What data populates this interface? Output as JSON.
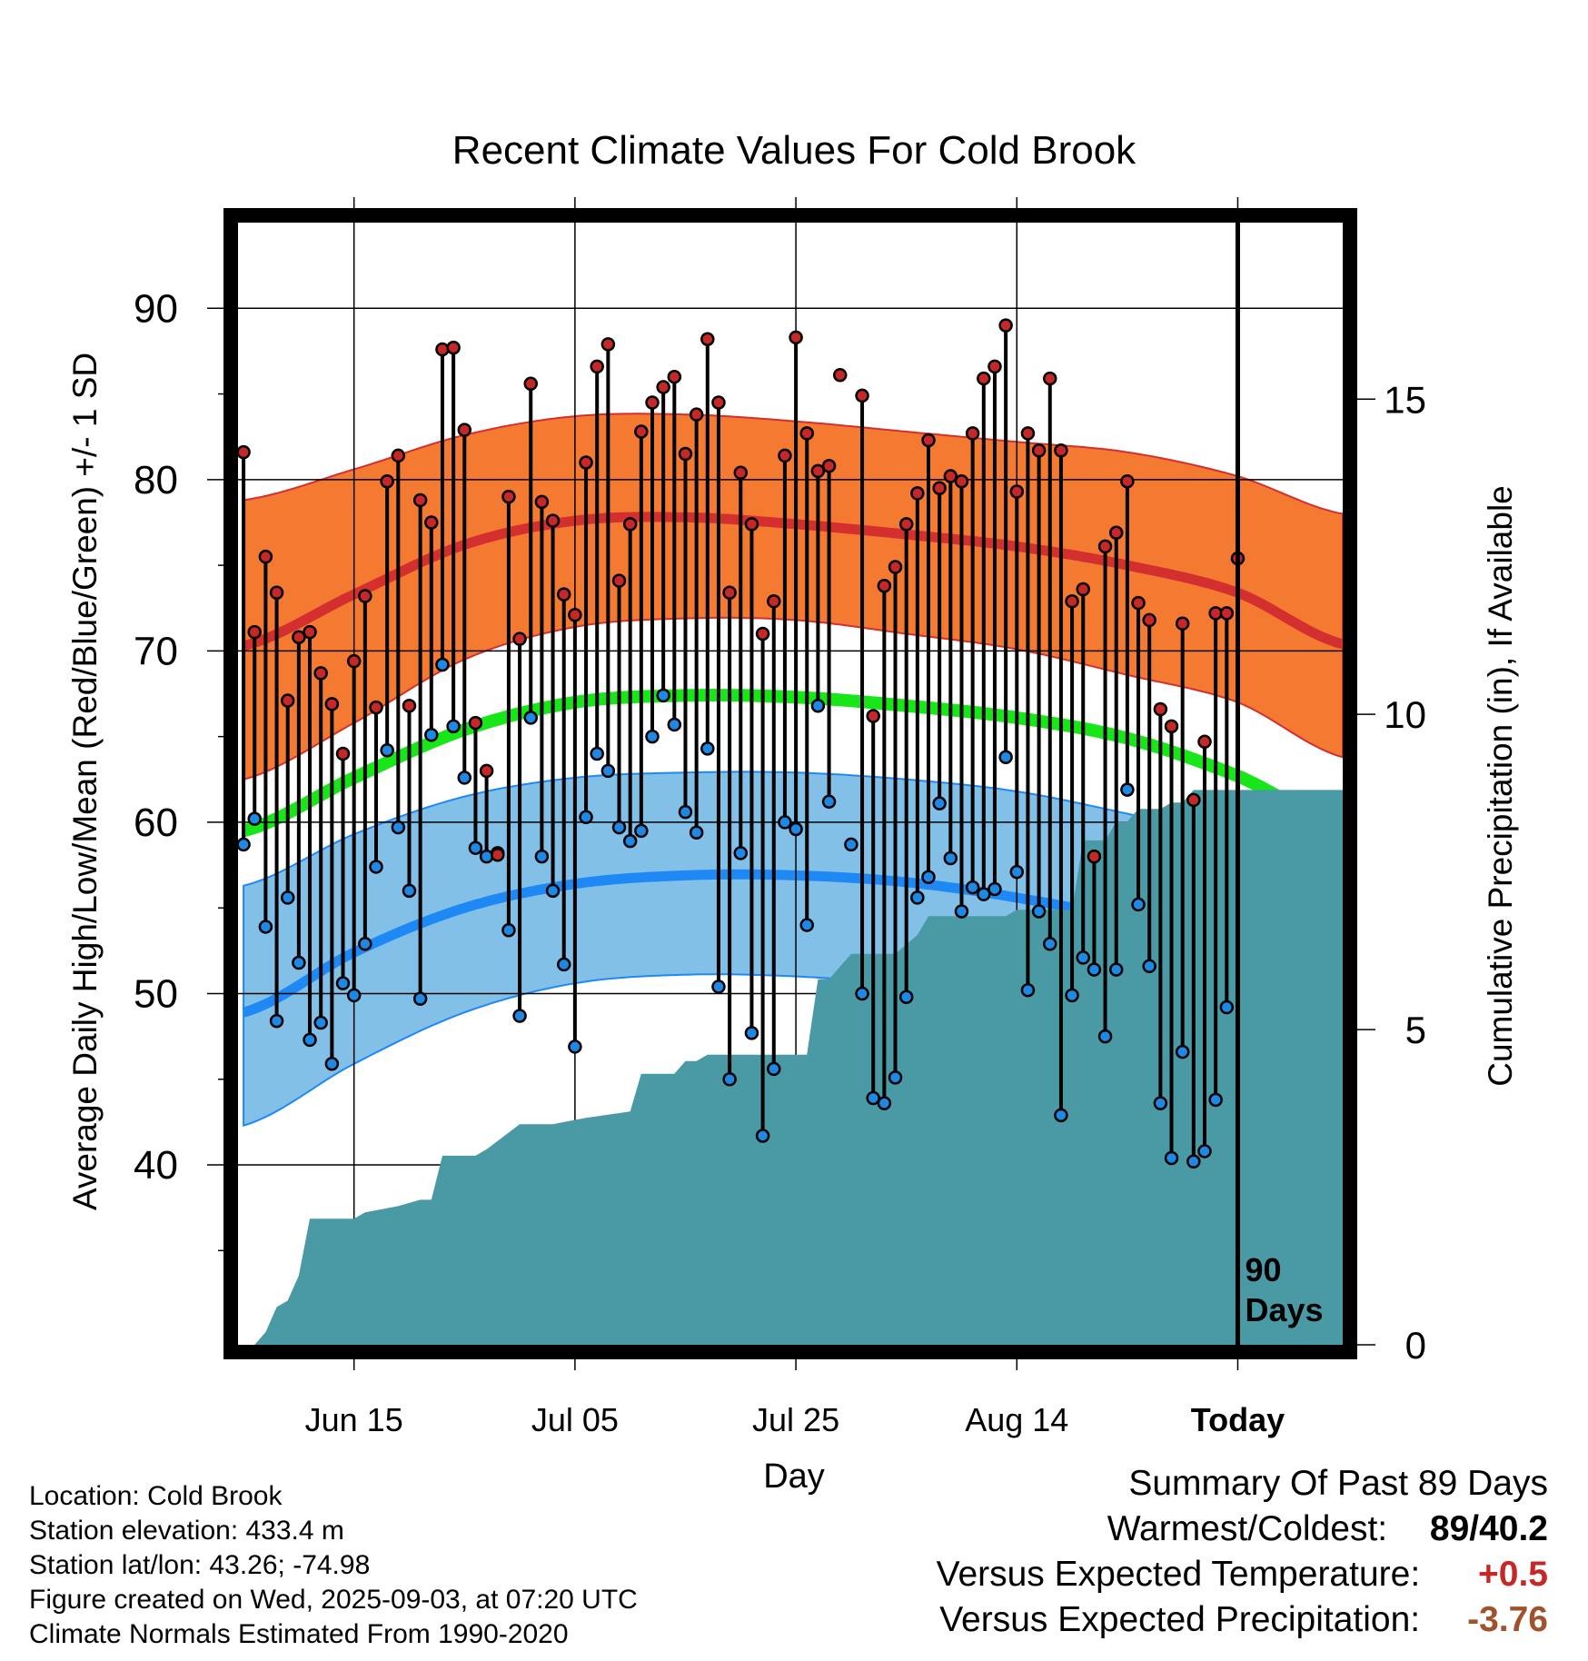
{
  "chart_data": {
    "type": "line",
    "title": "Recent Climate Values For Cold Brook",
    "xlabel": "Day",
    "ylabel_left": "Average Daily High/Low/Mean (Red/Blue/Green) +/- 1 SD",
    "ylabel_right": "Cumulative Precipitation (in), If Available",
    "x_start": "Jun 05",
    "x_range_days": [
      -0.5,
      99.5
    ],
    "xlim": [
      "Jun 05",
      "Sep 12"
    ],
    "ylim_temp": [
      29.5,
      95
    ],
    "ylim_precip": [
      0,
      17.8
    ],
    "x_ticks": [
      "Jun 15",
      "Jul 05",
      "Jul 25",
      "Aug 14",
      "Today"
    ],
    "x_tick_days": [
      10,
      30,
      50,
      70,
      90
    ],
    "y_ticks_temp": [
      40,
      50,
      60,
      70,
      80,
      90
    ],
    "y_ticks_precip": [
      0,
      5,
      10,
      15
    ],
    "today_marker": {
      "day": 90,
      "label_line1": "90",
      "label_line2": "Days"
    },
    "normals": {
      "days": [
        0,
        10,
        20,
        30,
        40,
        50,
        60,
        70,
        80,
        90,
        99.5
      ],
      "high_mean": [
        70.3,
        73.3,
        76.2,
        77.6,
        77.8,
        77.4,
        76.8,
        76.1,
        75.0,
        73.4,
        70.4
      ],
      "high_upper": [
        78.8,
        80.6,
        82.6,
        83.7,
        83.8,
        83.4,
        82.8,
        82.2,
        81.6,
        80.2,
        78.0
      ],
      "high_lower": [
        62.5,
        65.8,
        69.5,
        71.4,
        71.9,
        71.8,
        71.0,
        70.1,
        68.6,
        67.0,
        63.8
      ],
      "mean": [
        59.5,
        62.6,
        65.4,
        67.0,
        67.4,
        67.3,
        66.8,
        66.1,
        64.9,
        62.7,
        59.8
      ],
      "low_mean": [
        48.9,
        52.4,
        55.0,
        56.4,
        56.9,
        56.9,
        56.5,
        55.6,
        54.3,
        52.3,
        48.9
      ],
      "low_upper": [
        56.3,
        59.3,
        61.5,
        62.6,
        62.9,
        62.9,
        62.5,
        61.8,
        60.5,
        59.0,
        56.7
      ],
      "low_lower": [
        42.3,
        45.9,
        48.9,
        50.6,
        51.1,
        51.0,
        50.5,
        49.5,
        47.5,
        45.3,
        40.9
      ]
    },
    "series": [
      {
        "name": "High",
        "color": "#c62828",
        "values": [
          81.6,
          71.1,
          75.5,
          73.4,
          67.1,
          70.8,
          71.1,
          68.7,
          66.9,
          64.0,
          69.4,
          73.2,
          66.7,
          79.9,
          81.4,
          66.8,
          78.8,
          77.5,
          87.6,
          87.7,
          82.9,
          65.8,
          63.0,
          58.1,
          79.0,
          70.7,
          85.6,
          78.7,
          77.6,
          73.3,
          72.1,
          81.0,
          86.6,
          87.9,
          74.1,
          77.4,
          82.8,
          84.5,
          85.4,
          86.0,
          81.5,
          83.8,
          88.2,
          84.5,
          73.4,
          80.4,
          77.4,
          71.0,
          72.9,
          81.4,
          88.3,
          82.7,
          80.5,
          80.8,
          86.1,
          null,
          84.9,
          66.2,
          73.8,
          74.9,
          77.4,
          79.2,
          82.3,
          79.5,
          80.2,
          79.9,
          82.7,
          85.9,
          86.6,
          89.0,
          79.3,
          82.7,
          81.7,
          85.9,
          81.7,
          72.9,
          73.6,
          58.0,
          76.1,
          76.9,
          79.9,
          72.8,
          71.8,
          66.6,
          65.6,
          71.6,
          61.3,
          64.7,
          72.2,
          72.2,
          75.4
        ]
      },
      {
        "name": "Low",
        "color": "#1e88e5",
        "values": [
          58.7,
          60.2,
          53.9,
          48.4,
          55.6,
          51.8,
          47.3,
          48.3,
          45.9,
          50.6,
          49.9,
          52.9,
          57.4,
          64.2,
          59.7,
          56.0,
          49.7,
          65.1,
          69.2,
          65.6,
          62.6,
          58.5,
          58.0,
          58.2,
          53.7,
          48.7,
          66.1,
          58.0,
          56.0,
          51.7,
          46.9,
          60.3,
          64.0,
          63.0,
          59.7,
          58.9,
          59.5,
          65.0,
          67.4,
          65.7,
          60.6,
          59.4,
          64.3,
          50.4,
          45.0,
          58.2,
          47.7,
          41.7,
          45.6,
          60.0,
          59.6,
          54.0,
          66.8,
          61.2,
          null,
          58.7,
          50.0,
          43.9,
          43.6,
          45.1,
          49.8,
          55.6,
          56.8,
          61.1,
          57.9,
          54.8,
          56.2,
          55.8,
          56.1,
          63.8,
          57.1,
          50.2,
          54.8,
          52.9,
          42.9,
          49.9,
          52.1,
          51.4,
          47.5,
          51.4,
          61.9,
          55.2,
          51.6,
          43.6,
          40.4,
          46.6,
          40.2,
          40.8,
          43.8,
          49.2
        ]
      }
    ],
    "cumulative_precipitation": {
      "days": [
        1,
        2,
        3,
        4,
        5,
        6,
        7,
        10,
        11,
        14,
        16,
        17,
        18,
        20,
        21,
        22,
        25,
        26,
        27,
        28,
        31,
        35,
        36,
        37,
        39,
        40,
        41,
        42,
        43,
        45,
        47,
        48,
        50,
        51,
        52,
        53,
        55,
        56,
        58,
        59,
        61,
        62,
        63,
        64,
        65,
        66,
        68,
        69,
        70,
        74,
        75,
        76,
        77,
        78,
        79,
        80,
        81,
        82,
        83,
        84,
        85,
        86,
        87,
        99.5
      ],
      "values": [
        0.0,
        0.2,
        0.6,
        0.7,
        1.1,
        2.0,
        2.0,
        2.0,
        2.1,
        2.2,
        2.3,
        2.3,
        3.0,
        3.0,
        3.0,
        3.1,
        3.5,
        3.5,
        3.5,
        3.5,
        3.6,
        3.7,
        4.3,
        4.3,
        4.3,
        4.5,
        4.5,
        4.6,
        4.6,
        4.6,
        4.6,
        4.6,
        4.6,
        4.6,
        5.8,
        5.8,
        6.2,
        6.2,
        6.2,
        6.2,
        6.5,
        6.8,
        6.8,
        6.8,
        6.8,
        6.8,
        6.8,
        6.8,
        6.9,
        6.9,
        6.9,
        8.0,
        8.0,
        8.0,
        8.3,
        8.3,
        8.5,
        8.5,
        8.5,
        8.6,
        8.6,
        8.8,
        8.8,
        8.8
      ]
    }
  },
  "info": {
    "location": "Location: Cold Brook",
    "elevation": "Station elevation: 433.4 m",
    "latlon": "Station lat/lon: 43.26; -74.98",
    "created": "Figure created on Wed, 2025-09-03, at 07:20 UTC",
    "normals": "Climate Normals Estimated From 1990-2020"
  },
  "summary": {
    "title": "Summary Of Past 89 Days",
    "warmest_coldest_label": "Warmest/Coldest:",
    "warmest_coldest_value": "89/40.2",
    "temp_label": "Versus Expected Temperature:",
    "temp_value": "+0.5",
    "temp_color": "#c62828",
    "precip_label": "Versus Expected Precipitation:",
    "precip_value": "-3.76",
    "precip_color": "#a0522d"
  },
  "colors": {
    "high_band": "#f57a31",
    "high_line": "#d32f2f",
    "mean_line": "#19e619",
    "low_band": "#82c0e8",
    "low_line": "#1e88f5",
    "precip_fill": "#4a9aa5",
    "frame": "#000000"
  }
}
